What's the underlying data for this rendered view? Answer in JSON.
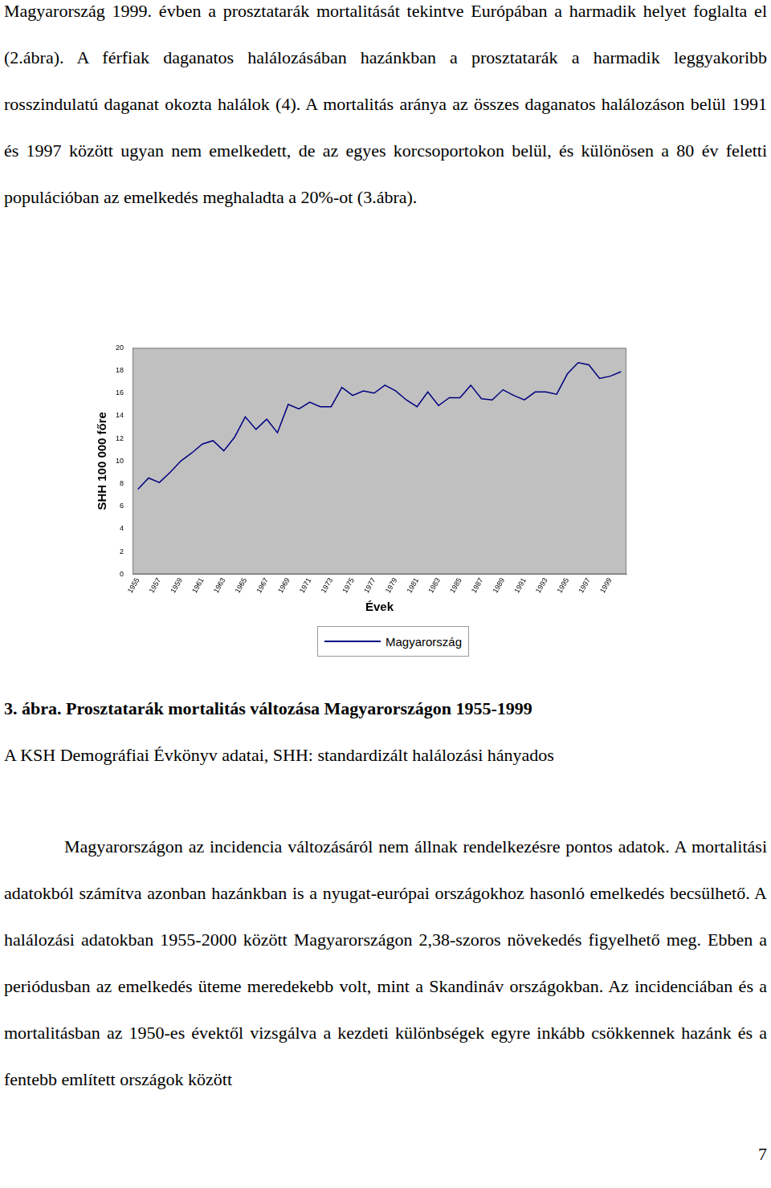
{
  "paragraphs": [
    "Magyarország 1999. évben a prosztatarák mortalitását tekintve Európában a harmadik helyet foglalta el (2.ábra). A férfiak daganatos halálozásában hazánkban a prosztatarák a harmadik leggyakoribb rosszindulatú daganat okozta halálok (4). A mortalitás aránya az összes daganatos halálozáson belül 1991 és 1997 között ugyan nem emelkedett, de az egyes korcsoportokon belül, és különösen a 80 év feletti populációban az emelkedés meghaladta a 20%-ot (3.ábra).",
    "Magyarországon az incidencia változásáról nem állnak rendelkezésre pontos adatok. A mortalitási adatokból számítva azonban hazánkban is a nyugat-európai országokhoz hasonló emelkedés becsülhető. A halálozási adatokban 1955-2000 között Magyarországon 2,38-szoros növekedés figyelhető meg. Ebben a periódusban az emelkedés üteme meredekebb volt, mint a Skandináv országokban. Az incidenciában és a mortalitásban az 1950-es évektől vizsgálva a kezdeti különbségek egyre inkább csökkennek hazánk és a fentebb említett országok között"
  ],
  "chart_data": {
    "type": "line",
    "x_label": "Évek",
    "y_label": "SHH 100 000 főre",
    "categories": [
      1955,
      null,
      1957,
      null,
      1959,
      null,
      1961,
      null,
      1963,
      null,
      1965,
      null,
      1967,
      null,
      1969,
      null,
      1971,
      null,
      1973,
      null,
      1975,
      null,
      1977,
      null,
      1979,
      null,
      1981,
      null,
      1983,
      null,
      1985,
      null,
      1987,
      null,
      1989,
      null,
      1991,
      null,
      1993,
      null,
      1995,
      null,
      1997,
      null,
      1999,
      null
    ],
    "series": [
      {
        "name": "Magyarország",
        "color": "#000080",
        "values": [
          7.5,
          8.5,
          8.1,
          9.0,
          10.0,
          10.7,
          11.5,
          11.8,
          10.9,
          12.1,
          13.9,
          12.8,
          13.7,
          12.5,
          15.0,
          14.6,
          15.2,
          14.8,
          14.8,
          16.5,
          15.8,
          16.2,
          16.0,
          16.7,
          16.2,
          15.4,
          14.8,
          16.1,
          14.9,
          15.6,
          15.6,
          16.7,
          15.5,
          15.4,
          16.3,
          15.8,
          15.4,
          16.1,
          16.1,
          15.9,
          17.7,
          18.7,
          18.5,
          17.3,
          17.5,
          17.9
        ]
      }
    ],
    "ylim": [
      0,
      20
    ],
    "yticks": [
      0,
      2,
      4,
      6,
      8,
      10,
      12,
      14,
      16,
      18,
      20
    ],
    "grid": false,
    "legend": "bottom"
  },
  "caption": {
    "label": "3. ábra.",
    "title": "Prosztatarák mortalitás változása Magyarországon 1955-1999"
  },
  "source": "A KSH Demográfiai Évkönyv adatai, SHH: standardizált halálozási hányados",
  "page_number": "7"
}
